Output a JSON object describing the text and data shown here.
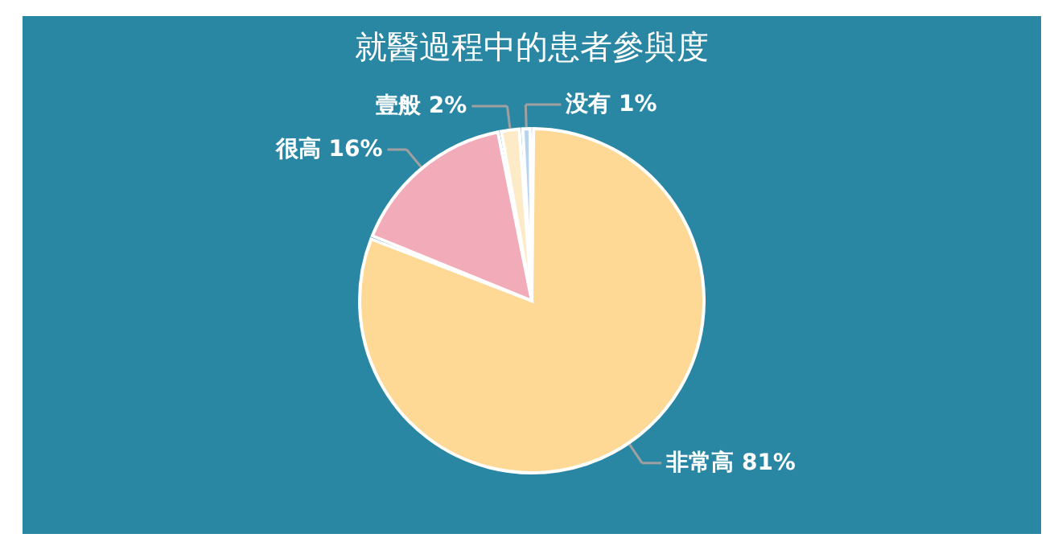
{
  "chart_data": {
    "type": "pie",
    "title": "就醫過程中的患者參與度",
    "categories": [
      "非常高",
      "很高",
      "壹般",
      "没有"
    ],
    "values": [
      81,
      16,
      2,
      1
    ],
    "colors": [
      "#fdd995",
      "#f2abb8",
      "#fdebc8",
      "#b9d3ec"
    ],
    "value_labels": [
      "81%",
      "16%",
      "2%",
      "1%"
    ]
  }
}
